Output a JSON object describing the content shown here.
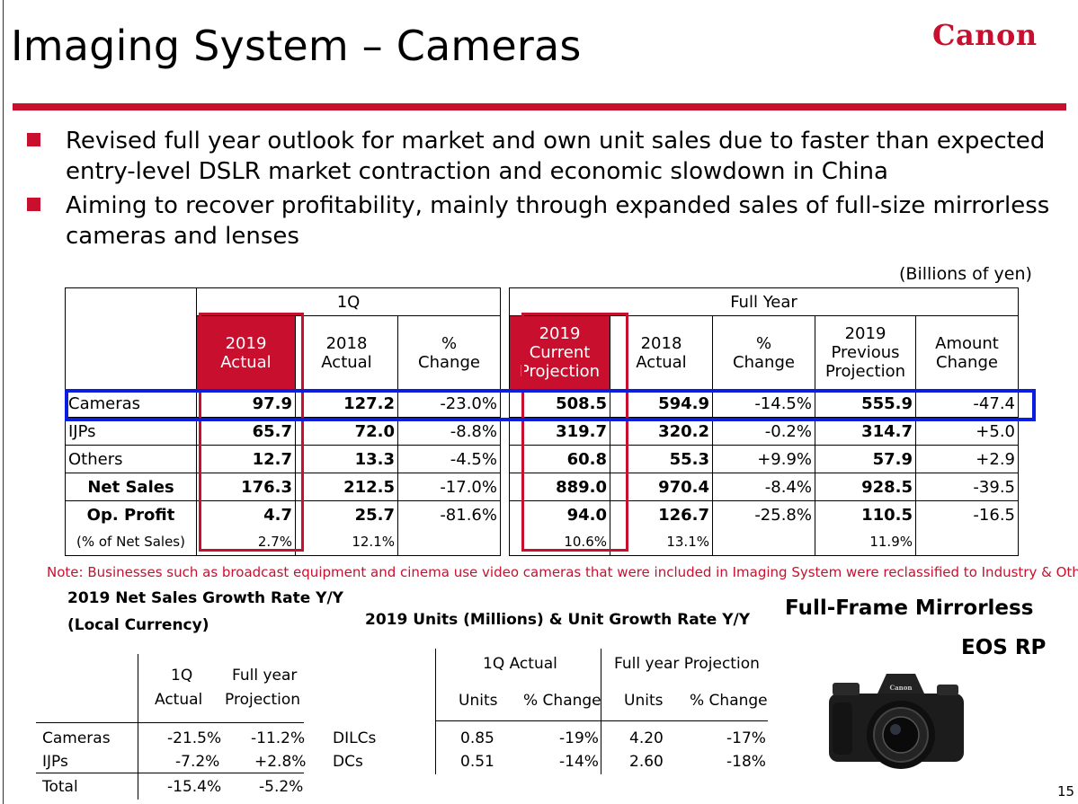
{
  "header": {
    "title": "Imaging System – Cameras",
    "logo": "Canon"
  },
  "bullets": [
    "Revised full year outlook for market and own unit sales due to faster than expected entry-level DSLR market contraction and economic slowdown in China",
    "Aiming to recover profitability, mainly through expanded sales of full-size mirrorless cameras and lenses"
  ],
  "unit_label": "(Billions of yen)",
  "main_table": {
    "group_1q": "1Q",
    "group_fy": "Full Year",
    "cols": {
      "q_2019": [
        "2019",
        "Actual"
      ],
      "q_2018": [
        "2018",
        "Actual"
      ],
      "q_change": [
        "%",
        "Change"
      ],
      "fy_2019": [
        "2019",
        "Current",
        "Projection"
      ],
      "fy_2018": [
        "2018",
        "Actual"
      ],
      "fy_change": [
        "%",
        "Change"
      ],
      "fy_prev": [
        "2019",
        "Previous",
        "Projection"
      ],
      "fy_amount": [
        "Amount",
        "Change"
      ]
    },
    "rows": [
      {
        "label": "Cameras",
        "q19": "97.9",
        "q18": "127.2",
        "qc": "-23.0%",
        "fy19": "508.5",
        "fy18": "594.9",
        "fyc": "-14.5%",
        "prev": "555.9",
        "amt": "-47.4"
      },
      {
        "label": "IJPs",
        "q19": "65.7",
        "q18": "72.0",
        "qc": "-8.8%",
        "fy19": "319.7",
        "fy18": "320.2",
        "fyc": "-0.2%",
        "prev": "314.7",
        "amt": "+5.0"
      },
      {
        "label": "Others",
        "q19": "12.7",
        "q18": "13.3",
        "qc": "-4.5%",
        "fy19": "60.8",
        "fy18": "55.3",
        "fyc": "+9.9%",
        "prev": "57.9",
        "amt": "+2.9"
      },
      {
        "label": "Net Sales",
        "q19": "176.3",
        "q18": "212.5",
        "qc": "-17.0%",
        "fy19": "889.0",
        "fy18": "970.4",
        "fyc": "-8.4%",
        "prev": "928.5",
        "amt": "-39.5"
      },
      {
        "label": "Op. Profit",
        "q19": "4.7",
        "q18": "25.7",
        "qc": "-81.6%",
        "fy19": "94.0",
        "fy18": "126.7",
        "fyc": "-25.8%",
        "prev": "110.5",
        "amt": "-16.5"
      },
      {
        "label": "(% of Net Sales)",
        "q19": "2.7%",
        "q18": "12.1%",
        "qc": "",
        "fy19": "10.6%",
        "fy18": "13.1%",
        "fyc": "",
        "prev": "11.9%",
        "amt": ""
      }
    ]
  },
  "note": "Note: Businesses such as broadcast equipment and cinema use video cameras that were included in Imaging System were reclassified to Industry & Others.",
  "growth": {
    "title_1": "2019 Net Sales Growth Rate Y/Y",
    "title_2": "(Local Currency)",
    "col1": [
      "1Q",
      "Actual"
    ],
    "col2": [
      "Full year",
      "Projection"
    ],
    "rows": [
      {
        "label": "Cameras",
        "q": "-21.5%",
        "fy": "-11.2%"
      },
      {
        "label": "IJPs",
        "q": "-7.2%",
        "fy": "+2.8%"
      },
      {
        "label": "Total",
        "q": "-15.4%",
        "fy": "-5.2%"
      }
    ]
  },
  "units": {
    "title": "2019 Units (Millions) & Unit Growth Rate Y/Y",
    "group_q": "1Q Actual",
    "group_fy": "Full year Projection",
    "sub_units": "Units",
    "sub_change": "% Change",
    "rows": [
      {
        "label": "DILCs",
        "qu": "0.85",
        "qc": "-19%",
        "fu": "4.20",
        "fc": "-17%"
      },
      {
        "label": "DCs",
        "qu": "0.51",
        "qc": "-14%",
        "fu": "2.60",
        "fc": "-18%"
      }
    ]
  },
  "product": {
    "title_1": "Full-Frame Mirrorless",
    "title_2": "EOS RP",
    "camera_badge": "Canon"
  },
  "page_number": "15"
}
